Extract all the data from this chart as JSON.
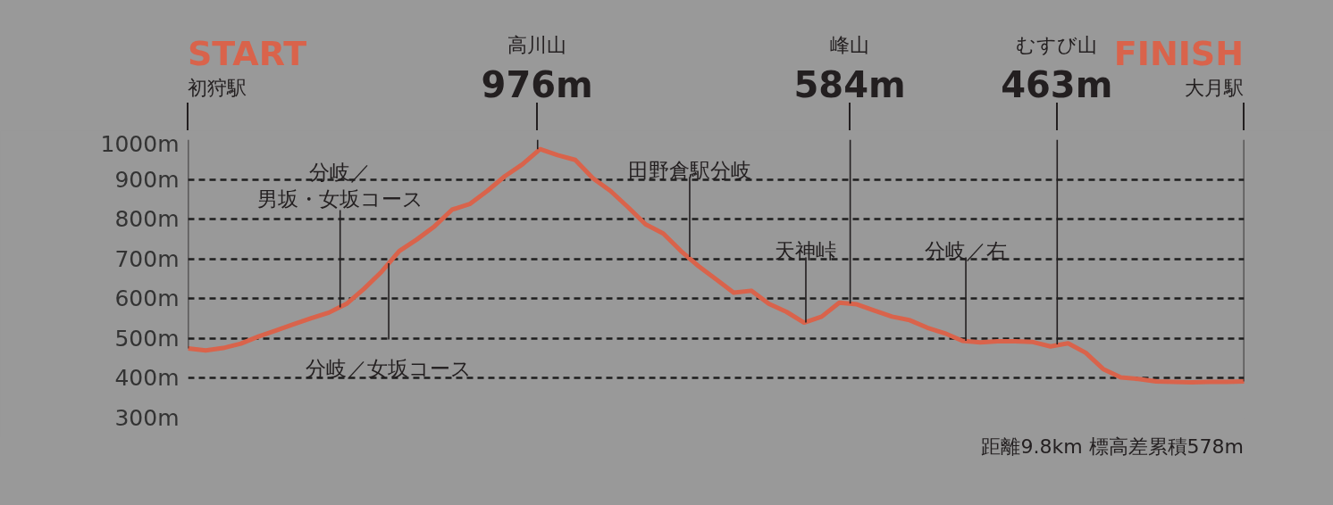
{
  "chart_data": {
    "type": "line",
    "color": "#d9634b",
    "categories": [
      null,
      null,
      null,
      null,
      null,
      null,
      null,
      null,
      null,
      null,
      null,
      null,
      null,
      null,
      null,
      null,
      null,
      null,
      null,
      null,
      null,
      null,
      null,
      null,
      null,
      null,
      null,
      null,
      null,
      null,
      null,
      null,
      null,
      null,
      null,
      null,
      null,
      null,
      null,
      null,
      null,
      null,
      null,
      null,
      null,
      null,
      null,
      null,
      null,
      null,
      null,
      null,
      null,
      null,
      null,
      null,
      null,
      null,
      null,
      null,
      null
    ],
    "values": [
      475,
      470,
      476,
      487,
      505,
      520,
      536,
      551,
      565,
      587,
      625,
      668,
      720,
      749,
      782,
      824,
      838,
      871,
      908,
      938,
      976,
      961,
      949,
      903,
      871,
      830,
      787,
      764,
      720,
      682,
      649,
      615,
      620,
      587,
      567,
      540,
      555,
      590,
      586,
      570,
      555,
      546,
      527,
      513,
      494,
      490,
      493,
      493,
      491,
      480,
      488,
      464,
      423,
      402,
      398,
      392,
      391,
      390,
      391,
      391,
      392
    ],
    "ylim": [
      300,
      1000
    ],
    "yticks": [
      {
        "value": 300,
        "label": "300m"
      },
      {
        "value": 400,
        "label": "400m"
      },
      {
        "value": 500,
        "label": "500m"
      },
      {
        "value": 600,
        "label": "600m"
      },
      {
        "value": 700,
        "label": "700m"
      },
      {
        "value": 800,
        "label": "800m"
      },
      {
        "value": 900,
        "label": "900m"
      },
      {
        "value": 1000,
        "label": "1000m"
      }
    ],
    "grid": "y",
    "tick_labels": "y",
    "annotations": [
      "START\n初狩駅",
      {
        "text": "高川山\n976m",
        "y": 976
      },
      {
        "text": "峰山\n584m",
        "y": 588
      },
      {
        "text": "むすび山\n463m",
        "y": 485
      },
      "FINISH\n大月駅",
      "分岐／",
      {
        "text": "男坂・女坂コース",
        "y": 578
      },
      {
        "text": "分岐／女坂コース",
        "y": 689
      },
      {
        "text": "田野倉駅分岐",
        "y": 705
      },
      {
        "text": "天神峠",
        "y": 540
      },
      {
        "text": "分岐／右",
        "y": 494
      },
      "距離9.8km 標高差累積578m"
    ]
  }
}
